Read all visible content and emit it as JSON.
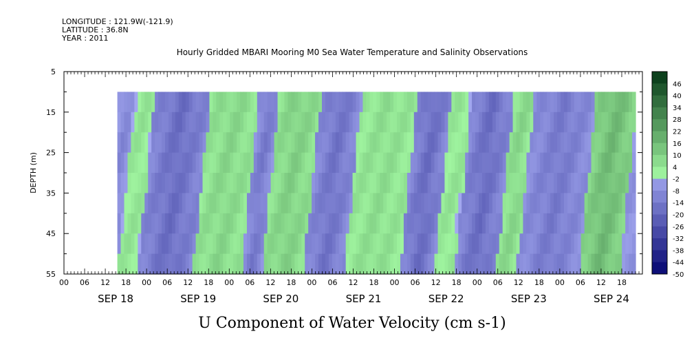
{
  "header": {
    "longitude": "LONGITUDE : 121.9W(-121.9)",
    "latitude": "LATITUDE : 36.8N",
    "year": "YEAR : 2011"
  },
  "chart_data": {
    "type": "heatmap",
    "title": "Hourly Gridded MBARI Mooring M0 Sea Water Temperature and Salinity Observations",
    "xlabel": "U Component of Water Velocity (cm s-1)",
    "ylabel": "DEPTH (m)",
    "y_ticks": [
      "5",
      "15",
      "25",
      "35",
      "45",
      "55"
    ],
    "ylim": [
      5,
      55
    ],
    "data_depth_range": [
      10,
      55
    ],
    "x_hour_ticks": [
      "00",
      "06",
      "12",
      "18",
      "00",
      "06",
      "12",
      "18",
      "00",
      "06",
      "12",
      "18",
      "00",
      "06",
      "12",
      "18",
      "00",
      "06",
      "12",
      "18",
      "00",
      "06",
      "12",
      "18",
      "00",
      "06",
      "12",
      "18"
    ],
    "x_day_labels": [
      "SEP 18",
      "SEP 19",
      "SEP 20",
      "SEP 21",
      "SEP 22",
      "SEP 23",
      "SEP 24"
    ],
    "x_range_hours": [
      -12,
      156
    ],
    "data_start_hour": 3.5,
    "data_end_hour": 154,
    "colorbar_labels": [
      "46",
      "40",
      "34",
      "28",
      "22",
      "16",
      "10",
      "4",
      "-2",
      "-8",
      "-14",
      "-20",
      "-26",
      "-32",
      "-38",
      "-44",
      "-50"
    ],
    "colorbar_range": [
      -50,
      52
    ],
    "colorbar_step": 6,
    "colors": {
      "positive_low": "#a0f5a0",
      "positive_high": "#0a3d1a",
      "negative_low": "#a3a8f0",
      "negative_high": "#050570"
    },
    "dominant_pattern": [
      {
        "hour_start": 3.5,
        "hour_end": 8,
        "sign": "negative",
        "magnitude": 10
      },
      {
        "hour_start": 8,
        "hour_end": 14,
        "sign": "positive",
        "magnitude": 4
      },
      {
        "hour_start": 14,
        "hour_end": 30,
        "sign": "negative",
        "magnitude": 18
      },
      {
        "hour_start": 30,
        "hour_end": 44,
        "sign": "positive",
        "magnitude": 8
      },
      {
        "hour_start": 44,
        "hour_end": 50,
        "sign": "negative",
        "magnitude": 14
      },
      {
        "hour_start": 50,
        "hour_end": 62,
        "sign": "positive",
        "magnitude": 10
      },
      {
        "hour_start": 62,
        "hour_end": 74,
        "sign": "negative",
        "magnitude": 16
      },
      {
        "hour_start": 74,
        "hour_end": 90,
        "sign": "positive",
        "magnitude": 6
      },
      {
        "hour_start": 90,
        "hour_end": 100,
        "sign": "negative",
        "magnitude": 18
      },
      {
        "hour_start": 100,
        "hour_end": 106,
        "sign": "positive",
        "magnitude": 4
      },
      {
        "hour_start": 106,
        "hour_end": 118,
        "sign": "negative",
        "magnitude": 18
      },
      {
        "hour_start": 118,
        "hour_end": 124,
        "sign": "positive",
        "magnitude": 8
      },
      {
        "hour_start": 124,
        "hour_end": 142,
        "sign": "negative",
        "magnitude": 14
      },
      {
        "hour_start": 142,
        "hour_end": 154,
        "sign": "positive",
        "magnitude": 16
      }
    ]
  }
}
